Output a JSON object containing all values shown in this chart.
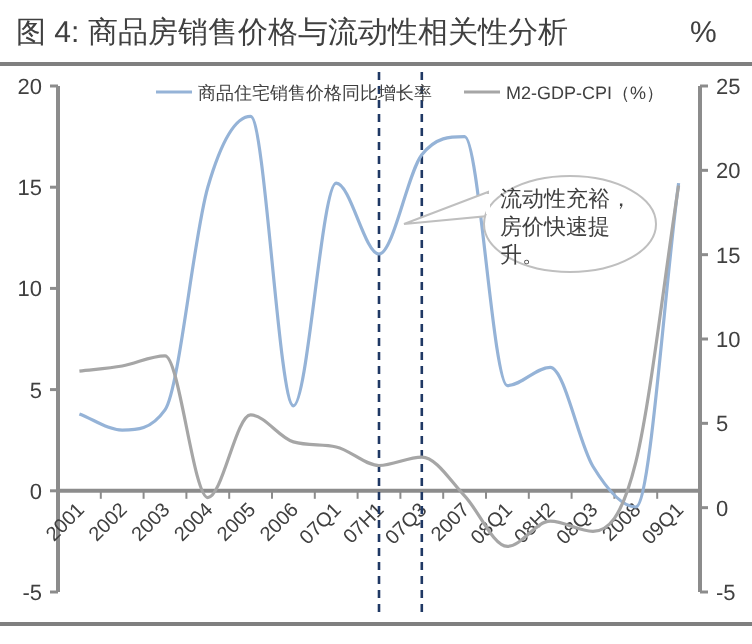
{
  "chart_data": {
    "type": "line",
    "title": "图 4: 商品房销售价格与流动性相关性分析",
    "categories": [
      "2001",
      "2002",
      "2003",
      "2004",
      "2005",
      "2006",
      "07Q1",
      "07H1",
      "07Q3",
      "2007",
      "08Q1",
      "08H2",
      "08Q3",
      "2008",
      "09Q1"
    ],
    "series": [
      {
        "name": "商品住宅销售价格同比增长率",
        "color": "#95b3d7",
        "values": [
          3.8,
          3.0,
          4.0,
          15.0,
          18.5,
          4.2,
          15.2,
          11.7,
          16.6,
          17.5,
          5.2,
          6.1,
          1.2,
          -0.8,
          15.2
        ]
      },
      {
        "name": "M2-GDP-CPI（%）",
        "color": "#a6a6a6",
        "axis": "y2",
        "values": [
          8.1,
          8.4,
          9.0,
          0.6,
          5.5,
          3.9,
          3.6,
          2.5,
          3.0,
          0.7,
          -2.3,
          -0.8,
          -1.4,
          2.7,
          19.1
        ]
      }
    ],
    "ylim": [
      -5,
      20
    ],
    "yticks": [
      -5,
      0,
      5,
      10,
      15,
      20
    ],
    "y2lim": [
      -5,
      25
    ],
    "y2ticks": [
      -5,
      0,
      5,
      10,
      15,
      20,
      25
    ],
    "ref_lines": [
      {
        "axis": "x",
        "value": "07H1",
        "color": "#1f3864",
        "line_style": "dashed"
      },
      {
        "axis": "x",
        "value": "07Q3",
        "color": "#1f3864",
        "line_style": "dashed"
      }
    ],
    "annotations": [
      "%",
      "流动性充裕，房价快速提升。"
    ],
    "legend": "top",
    "grid": false,
    "marker": "none",
    "line_style": "solid"
  }
}
